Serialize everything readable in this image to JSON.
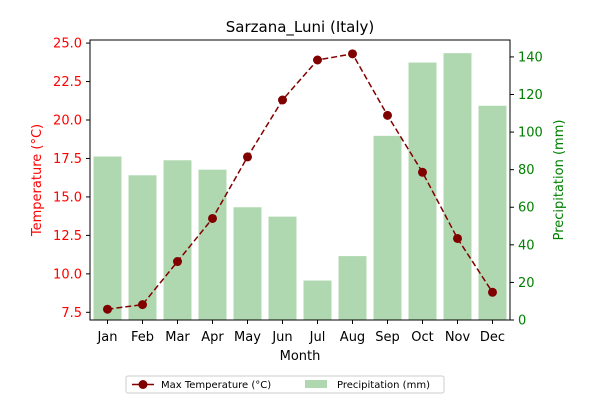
{
  "chart_data": {
    "type": "bar+line",
    "title": "Sarzana_Luni (Italy)",
    "xlabel": "Month",
    "categories": [
      "Jan",
      "Feb",
      "Mar",
      "Apr",
      "May",
      "Jun",
      "Jul",
      "Aug",
      "Sep",
      "Oct",
      "Nov",
      "Dec"
    ],
    "y_left": {
      "label": "Temperature (°C)",
      "range": [
        7.0,
        25.2
      ],
      "ticks": [
        "7.5",
        "10.0",
        "12.5",
        "15.0",
        "17.5",
        "20.0",
        "22.5",
        "25.0"
      ],
      "color": "#ff0000"
    },
    "y_right": {
      "label": "Precipitation (mm)",
      "range": [
        0,
        149
      ],
      "ticks": [
        "0",
        "20",
        "40",
        "60",
        "80",
        "100",
        "120",
        "140"
      ],
      "color": "#008000"
    },
    "series": [
      {
        "name": "Max Temperature (°C)",
        "kind": "line",
        "axis": "left",
        "color": "#800000",
        "style": "dashed-with-markers",
        "values": [
          7.7,
          8.0,
          10.8,
          13.6,
          17.6,
          21.3,
          23.9,
          24.3,
          20.3,
          16.6,
          12.3,
          8.8
        ]
      },
      {
        "name": "Precipitation (mm)",
        "kind": "bar",
        "axis": "right",
        "color": "#b0d8b0",
        "values": [
          87,
          77,
          85,
          80,
          60,
          55,
          21,
          34,
          98,
          137,
          142,
          114
        ]
      }
    ],
    "legend": {
      "placement": "bottom-center",
      "columns": 2
    },
    "grid": false
  }
}
